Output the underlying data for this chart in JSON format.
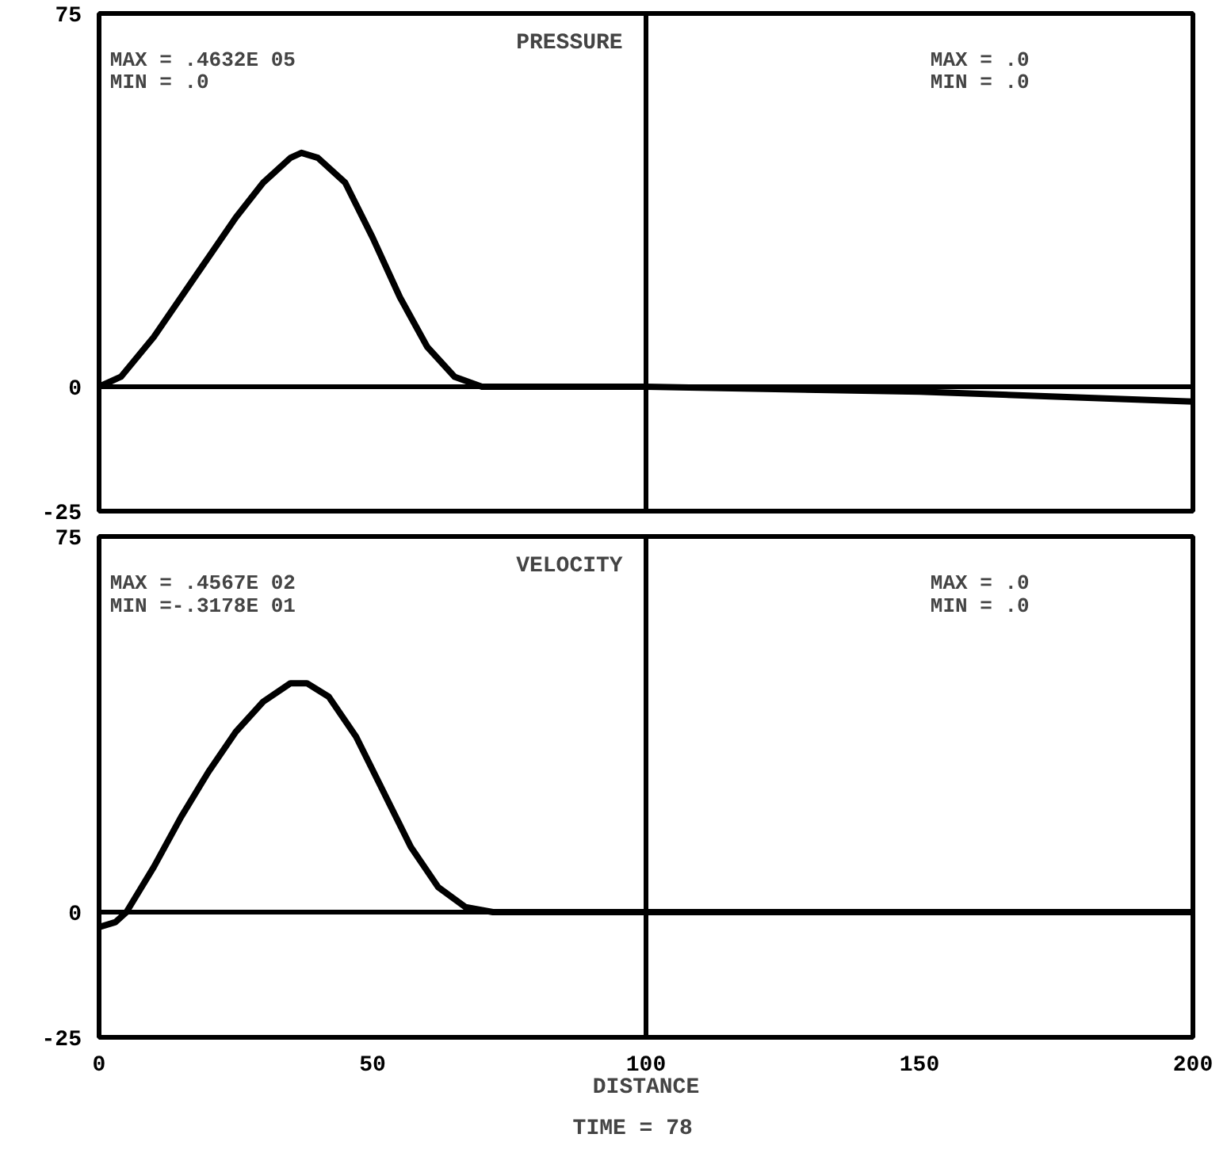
{
  "chart_data": [
    {
      "type": "line",
      "title": "PRESSURE",
      "annotations": [
        "MAX = .4632E 05",
        "MIN = .0",
        "MAX = .0",
        "MIN = .0"
      ],
      "x": [
        0,
        4,
        10,
        15,
        20,
        25,
        30,
        35,
        37,
        40,
        45,
        50,
        55,
        60,
        65,
        70,
        100,
        150,
        200
      ],
      "series": [
        {
          "color": "#000000",
          "values": [
            0,
            2,
            10,
            18,
            26,
            34,
            41,
            46,
            47,
            46,
            41,
            30,
            18,
            8,
            2,
            0,
            0,
            -1,
            -3
          ]
        }
      ],
      "xlim": [
        0,
        200
      ],
      "xticks": [
        0,
        50,
        100,
        150,
        200
      ],
      "ylim": [
        -25,
        75
      ],
      "yticks": [
        -25,
        0,
        75
      ],
      "tick_labels": "y",
      "grid": false,
      "ref_lines": [
        {
          "axis": "x",
          "value": 100,
          "label": null,
          "color": "#000000"
        },
        {
          "axis": "y",
          "value": 0,
          "label": null,
          "color": "#000000"
        }
      ]
    },
    {
      "type": "line",
      "title": "VELOCITY",
      "xlabel": "DISTANCE",
      "annotations": [
        "MAX = .4567E 02",
        "MIN =-.3178E 01",
        "MAX = .0",
        "MIN = .0",
        "TIME =   78"
      ],
      "x": [
        0,
        3,
        5,
        10,
        15,
        20,
        25,
        30,
        35,
        38,
        42,
        47,
        52,
        57,
        62,
        67,
        72,
        200
      ],
      "series": [
        {
          "color": "#000000",
          "values": [
            -3,
            -2,
            0,
            9,
            19,
            28,
            36,
            42,
            45.7,
            45.7,
            43,
            35,
            24,
            13,
            5,
            1,
            0,
            0
          ]
        }
      ],
      "xlim": [
        0,
        200
      ],
      "xticks": [
        0,
        50,
        100,
        150,
        200
      ],
      "ylim": [
        -25,
        75
      ],
      "yticks": [
        -25,
        0,
        75
      ],
      "grid": false,
      "ref_lines": [
        {
          "axis": "x",
          "value": 100,
          "label": null,
          "color": "#000000"
        },
        {
          "axis": "y",
          "value": 0,
          "label": null,
          "color": "#000000"
        }
      ]
    }
  ]
}
